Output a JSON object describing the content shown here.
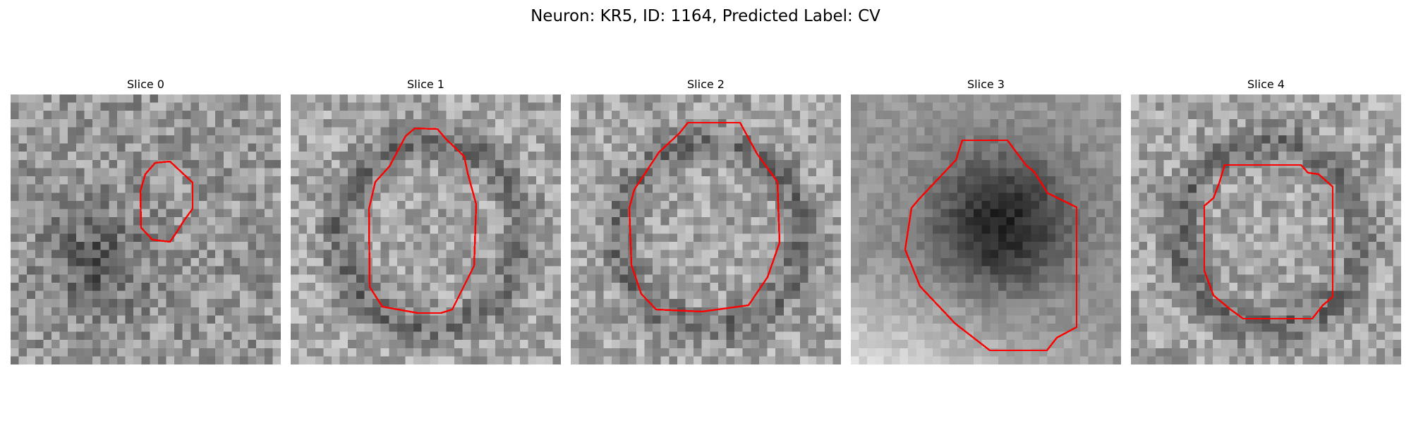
{
  "figure": {
    "title": "Neuron: KR5, ID: 1164, Predicted Label: CV"
  },
  "slices": [
    {
      "title": "Slice 0",
      "tone": "noisy-medium-gray",
      "outline": "small-oval"
    },
    {
      "title": "Slice 1",
      "tone": "noisy-light-gray",
      "outline": "large-octagon"
    },
    {
      "title": "Slice 2",
      "tone": "noisy-light-gray",
      "outline": "large-octagon"
    },
    {
      "title": "Slice 3",
      "tone": "dark-soma-light-background",
      "outline": "large-octagon"
    },
    {
      "title": "Slice 4",
      "tone": "noisy-light-gray",
      "outline": "medium-octagon"
    }
  ],
  "colors": {
    "contour": "#ff0000",
    "background": "#ffffff",
    "text": "#000000"
  }
}
